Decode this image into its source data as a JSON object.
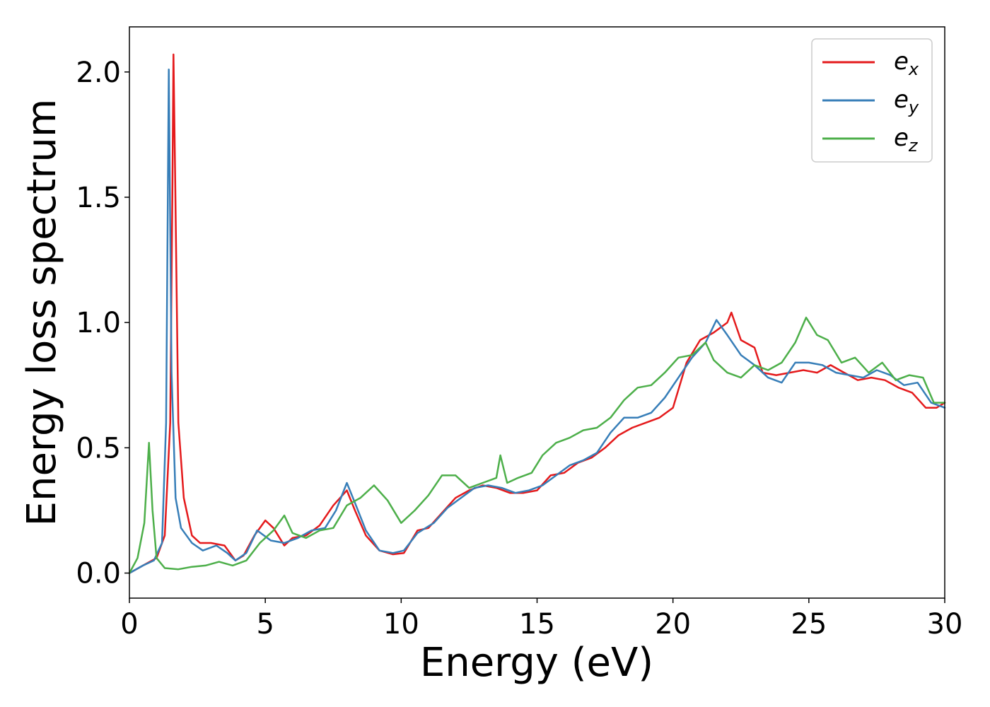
{
  "chart_data": {
    "type": "line",
    "title": "",
    "xlabel": "Energy (eV)",
    "ylabel": "Energy loss spectrum",
    "xlim": [
      0,
      30
    ],
    "ylim": [
      -0.1,
      2.18
    ],
    "xticks": [
      0,
      5,
      10,
      15,
      20,
      25,
      30
    ],
    "xtick_labels": [
      "0",
      "5",
      "10",
      "15",
      "20",
      "25",
      "30"
    ],
    "yticks": [
      0.0,
      0.5,
      1.0,
      1.5,
      2.0
    ],
    "ytick_labels": [
      "0.0",
      "0.5",
      "1.0",
      "1.5",
      "2.0"
    ],
    "grid": false,
    "legend_position": "top-right",
    "series": [
      {
        "name": "e_x",
        "label_base": "e",
        "label_sub": "x",
        "color": "#e41a1c",
        "points": [
          [
            0,
            0.0
          ],
          [
            0.5,
            0.03
          ],
          [
            1.0,
            0.06
          ],
          [
            1.3,
            0.15
          ],
          [
            1.5,
            0.6
          ],
          [
            1.58,
            1.5
          ],
          [
            1.62,
            2.07
          ],
          [
            1.68,
            1.6
          ],
          [
            1.8,
            0.6
          ],
          [
            2.0,
            0.3
          ],
          [
            2.3,
            0.15
          ],
          [
            2.6,
            0.12
          ],
          [
            3.0,
            0.12
          ],
          [
            3.5,
            0.11
          ],
          [
            3.9,
            0.05
          ],
          [
            4.2,
            0.07
          ],
          [
            4.6,
            0.15
          ],
          [
            5.0,
            0.21
          ],
          [
            5.3,
            0.18
          ],
          [
            5.7,
            0.11
          ],
          [
            6.0,
            0.14
          ],
          [
            6.5,
            0.15
          ],
          [
            7.0,
            0.19
          ],
          [
            7.5,
            0.27
          ],
          [
            8.0,
            0.33
          ],
          [
            8.3,
            0.25
          ],
          [
            8.7,
            0.15
          ],
          [
            9.2,
            0.09
          ],
          [
            9.7,
            0.075
          ],
          [
            10.1,
            0.08
          ],
          [
            10.6,
            0.17
          ],
          [
            11.0,
            0.18
          ],
          [
            11.5,
            0.24
          ],
          [
            12.0,
            0.3
          ],
          [
            12.5,
            0.33
          ],
          [
            13.0,
            0.35
          ],
          [
            13.5,
            0.34
          ],
          [
            14.0,
            0.32
          ],
          [
            14.5,
            0.32
          ],
          [
            15.0,
            0.33
          ],
          [
            15.5,
            0.39
          ],
          [
            16.0,
            0.4
          ],
          [
            16.5,
            0.44
          ],
          [
            17.0,
            0.46
          ],
          [
            17.5,
            0.5
          ],
          [
            18.0,
            0.55
          ],
          [
            18.5,
            0.58
          ],
          [
            19.0,
            0.6
          ],
          [
            19.5,
            0.62
          ],
          [
            20.0,
            0.66
          ],
          [
            20.5,
            0.84
          ],
          [
            21.0,
            0.93
          ],
          [
            21.5,
            0.96
          ],
          [
            22.0,
            1.0
          ],
          [
            22.15,
            1.04
          ],
          [
            22.5,
            0.93
          ],
          [
            23.0,
            0.9
          ],
          [
            23.3,
            0.8
          ],
          [
            23.8,
            0.79
          ],
          [
            24.3,
            0.8
          ],
          [
            24.8,
            0.81
          ],
          [
            25.3,
            0.8
          ],
          [
            25.8,
            0.83
          ],
          [
            26.3,
            0.8
          ],
          [
            26.8,
            0.77
          ],
          [
            27.3,
            0.78
          ],
          [
            27.8,
            0.77
          ],
          [
            28.3,
            0.74
          ],
          [
            28.8,
            0.72
          ],
          [
            29.3,
            0.66
          ],
          [
            29.7,
            0.66
          ],
          [
            30.0,
            0.68
          ]
        ]
      },
      {
        "name": "e_y",
        "label_base": "e",
        "label_sub": "y",
        "color": "#377eb8",
        "points": [
          [
            0,
            0.0
          ],
          [
            0.5,
            0.03
          ],
          [
            0.9,
            0.05
          ],
          [
            1.2,
            0.12
          ],
          [
            1.35,
            0.6
          ],
          [
            1.45,
            2.01
          ],
          [
            1.55,
            0.8
          ],
          [
            1.7,
            0.3
          ],
          [
            1.9,
            0.18
          ],
          [
            2.3,
            0.12
          ],
          [
            2.7,
            0.09
          ],
          [
            3.2,
            0.11
          ],
          [
            3.6,
            0.08
          ],
          [
            3.9,
            0.05
          ],
          [
            4.3,
            0.08
          ],
          [
            4.7,
            0.17
          ],
          [
            5.2,
            0.13
          ],
          [
            5.7,
            0.12
          ],
          [
            6.2,
            0.14
          ],
          [
            6.7,
            0.17
          ],
          [
            7.2,
            0.18
          ],
          [
            7.6,
            0.25
          ],
          [
            8.0,
            0.36
          ],
          [
            8.3,
            0.28
          ],
          [
            8.7,
            0.17
          ],
          [
            9.2,
            0.09
          ],
          [
            9.7,
            0.08
          ],
          [
            10.1,
            0.09
          ],
          [
            10.6,
            0.16
          ],
          [
            11.2,
            0.2
          ],
          [
            11.7,
            0.26
          ],
          [
            12.2,
            0.3
          ],
          [
            12.7,
            0.34
          ],
          [
            13.2,
            0.35
          ],
          [
            13.7,
            0.34
          ],
          [
            14.2,
            0.32
          ],
          [
            14.7,
            0.33
          ],
          [
            15.2,
            0.35
          ],
          [
            15.7,
            0.39
          ],
          [
            16.2,
            0.43
          ],
          [
            16.7,
            0.45
          ],
          [
            17.2,
            0.48
          ],
          [
            17.7,
            0.56
          ],
          [
            18.2,
            0.62
          ],
          [
            18.7,
            0.62
          ],
          [
            19.2,
            0.64
          ],
          [
            19.7,
            0.7
          ],
          [
            20.2,
            0.78
          ],
          [
            20.7,
            0.86
          ],
          [
            21.2,
            0.92
          ],
          [
            21.6,
            1.01
          ],
          [
            22.0,
            0.95
          ],
          [
            22.5,
            0.87
          ],
          [
            23.0,
            0.83
          ],
          [
            23.5,
            0.78
          ],
          [
            24.0,
            0.76
          ],
          [
            24.5,
            0.84
          ],
          [
            25.0,
            0.84
          ],
          [
            25.5,
            0.83
          ],
          [
            26.0,
            0.8
          ],
          [
            26.5,
            0.79
          ],
          [
            27.0,
            0.78
          ],
          [
            27.5,
            0.81
          ],
          [
            28.0,
            0.79
          ],
          [
            28.5,
            0.75
          ],
          [
            29.0,
            0.76
          ],
          [
            29.5,
            0.68
          ],
          [
            30.0,
            0.66
          ]
        ]
      },
      {
        "name": "e_z",
        "label_base": "e",
        "label_sub": "z",
        "color": "#4daf4a",
        "points": [
          [
            0,
            0.0
          ],
          [
            0.3,
            0.06
          ],
          [
            0.55,
            0.2
          ],
          [
            0.72,
            0.52
          ],
          [
            0.85,
            0.25
          ],
          [
            1.0,
            0.06
          ],
          [
            1.3,
            0.02
          ],
          [
            1.8,
            0.015
          ],
          [
            2.3,
            0.025
          ],
          [
            2.8,
            0.03
          ],
          [
            3.3,
            0.045
          ],
          [
            3.8,
            0.03
          ],
          [
            4.3,
            0.05
          ],
          [
            4.8,
            0.12
          ],
          [
            5.3,
            0.17
          ],
          [
            5.7,
            0.23
          ],
          [
            6.0,
            0.16
          ],
          [
            6.5,
            0.14
          ],
          [
            7.0,
            0.17
          ],
          [
            7.5,
            0.18
          ],
          [
            8.0,
            0.27
          ],
          [
            8.5,
            0.3
          ],
          [
            9.0,
            0.35
          ],
          [
            9.5,
            0.29
          ],
          [
            10.0,
            0.2
          ],
          [
            10.5,
            0.25
          ],
          [
            11.0,
            0.31
          ],
          [
            11.5,
            0.39
          ],
          [
            12.0,
            0.39
          ],
          [
            12.5,
            0.34
          ],
          [
            13.0,
            0.36
          ],
          [
            13.5,
            0.38
          ],
          [
            13.65,
            0.47
          ],
          [
            13.9,
            0.36
          ],
          [
            14.3,
            0.38
          ],
          [
            14.8,
            0.4
          ],
          [
            15.2,
            0.47
          ],
          [
            15.7,
            0.52
          ],
          [
            16.2,
            0.54
          ],
          [
            16.7,
            0.57
          ],
          [
            17.2,
            0.58
          ],
          [
            17.7,
            0.62
          ],
          [
            18.2,
            0.69
          ],
          [
            18.7,
            0.74
          ],
          [
            19.2,
            0.75
          ],
          [
            19.7,
            0.8
          ],
          [
            20.2,
            0.86
          ],
          [
            20.7,
            0.87
          ],
          [
            21.2,
            0.92
          ],
          [
            21.5,
            0.85
          ],
          [
            22.0,
            0.8
          ],
          [
            22.5,
            0.78
          ],
          [
            23.0,
            0.83
          ],
          [
            23.5,
            0.81
          ],
          [
            24.0,
            0.84
          ],
          [
            24.5,
            0.92
          ],
          [
            24.9,
            1.02
          ],
          [
            25.3,
            0.95
          ],
          [
            25.7,
            0.93
          ],
          [
            26.2,
            0.84
          ],
          [
            26.7,
            0.86
          ],
          [
            27.2,
            0.8
          ],
          [
            27.7,
            0.84
          ],
          [
            28.2,
            0.77
          ],
          [
            28.7,
            0.79
          ],
          [
            29.2,
            0.78
          ],
          [
            29.6,
            0.68
          ],
          [
            30.0,
            0.68
          ]
        ]
      }
    ]
  }
}
